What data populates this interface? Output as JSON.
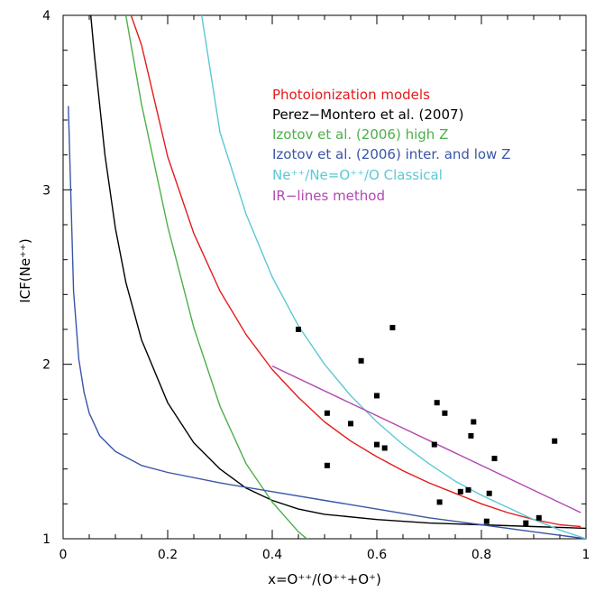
{
  "chart_data": {
    "type": "line",
    "title": "",
    "xlabel": "x=O⁺⁺/(O⁺⁺+O⁺)",
    "ylabel": "ICF(Ne⁺⁺)",
    "xlim": [
      0,
      1
    ],
    "ylim": [
      1,
      4
    ],
    "x_ticks": [
      0,
      0.2,
      0.4,
      0.6,
      0.8,
      1
    ],
    "x_tick_labels": [
      "0",
      "0.2",
      "0.4",
      "0.6",
      "0.8",
      "1"
    ],
    "y_ticks": [
      1,
      2,
      3,
      4
    ],
    "y_tick_labels": [
      "1",
      "2",
      "3",
      "4"
    ],
    "grid": false,
    "legend_position": "upper-right",
    "series": [
      {
        "name": "Photoionization models",
        "color": "#e41a1c",
        "x": [
          0.13,
          0.15,
          0.2,
          0.25,
          0.3,
          0.35,
          0.4,
          0.45,
          0.5,
          0.55,
          0.6,
          0.65,
          0.7,
          0.75,
          0.8,
          0.85,
          0.9,
          0.95,
          0.99
        ],
        "y": [
          4.0,
          3.83,
          3.19,
          2.75,
          2.42,
          2.17,
          1.97,
          1.81,
          1.67,
          1.56,
          1.47,
          1.39,
          1.32,
          1.26,
          1.2,
          1.15,
          1.11,
          1.08,
          1.07
        ]
      },
      {
        "name": "Perez−Montero et al. (2007)",
        "color": "#000000",
        "x": [
          0.053,
          0.06,
          0.08,
          0.1,
          0.12,
          0.15,
          0.2,
          0.25,
          0.3,
          0.35,
          0.4,
          0.45,
          0.5,
          0.6,
          0.7,
          0.8,
          0.9,
          1.0
        ],
        "y": [
          4.0,
          3.77,
          3.2,
          2.78,
          2.47,
          2.14,
          1.78,
          1.55,
          1.4,
          1.29,
          1.22,
          1.17,
          1.14,
          1.11,
          1.09,
          1.08,
          1.07,
          1.06
        ]
      },
      {
        "name": "Izotov et al. (2006) high Z",
        "color": "#4daf4a",
        "x": [
          0.12,
          0.15,
          0.2,
          0.25,
          0.3,
          0.35,
          0.4,
          0.45,
          0.47
        ],
        "y": [
          4.0,
          3.49,
          2.79,
          2.21,
          1.76,
          1.43,
          1.21,
          1.04,
          0.99
        ]
      },
      {
        "name": "Izotov et al. (2006)  inter. and low Z",
        "color": "#3a55a8",
        "x": [
          0.01,
          0.015,
          0.02,
          0.03,
          0.04,
          0.05,
          0.07,
          0.1,
          0.15,
          0.2,
          0.3,
          0.4,
          0.5,
          0.6,
          0.7,
          0.8,
          0.9,
          1.0
        ],
        "y": [
          3.48,
          2.95,
          2.42,
          2.03,
          1.84,
          1.72,
          1.59,
          1.5,
          1.42,
          1.38,
          1.32,
          1.27,
          1.22,
          1.17,
          1.12,
          1.08,
          1.04,
          1.0
        ]
      },
      {
        "name": "Ne⁺⁺/Ne=O⁺⁺/O  Classical",
        "color": "#5bc8d6",
        "x": [
          0.265,
          0.3,
          0.35,
          0.4,
          0.45,
          0.5,
          0.55,
          0.6,
          0.65,
          0.7,
          0.75,
          0.8,
          0.85,
          0.9,
          0.95,
          1.0
        ],
        "y": [
          4.0,
          3.33,
          2.86,
          2.5,
          2.22,
          2.0,
          1.82,
          1.67,
          1.54,
          1.43,
          1.33,
          1.25,
          1.18,
          1.11,
          1.05,
          1.0
        ]
      },
      {
        "name": "IR−lines method",
        "color": "#b247b0",
        "x": [
          0.4,
          0.99
        ],
        "y": [
          1.99,
          1.15
        ]
      }
    ],
    "scatter": {
      "marker": "square",
      "color": "#000000",
      "points": [
        [
          0.45,
          2.2
        ],
        [
          0.63,
          2.21
        ],
        [
          0.57,
          2.02
        ],
        [
          0.6,
          1.82
        ],
        [
          0.505,
          1.72
        ],
        [
          0.715,
          1.78
        ],
        [
          0.73,
          1.72
        ],
        [
          0.55,
          1.66
        ],
        [
          0.785,
          1.67
        ],
        [
          0.78,
          1.59
        ],
        [
          0.6,
          1.54
        ],
        [
          0.615,
          1.52
        ],
        [
          0.71,
          1.54
        ],
        [
          0.94,
          1.56
        ],
        [
          0.505,
          1.42
        ],
        [
          0.825,
          1.46
        ],
        [
          0.76,
          1.27
        ],
        [
          0.775,
          1.28
        ],
        [
          0.815,
          1.26
        ],
        [
          0.72,
          1.21
        ],
        [
          0.81,
          1.1
        ],
        [
          0.885,
          1.09
        ],
        [
          0.91,
          1.12
        ]
      ]
    }
  }
}
